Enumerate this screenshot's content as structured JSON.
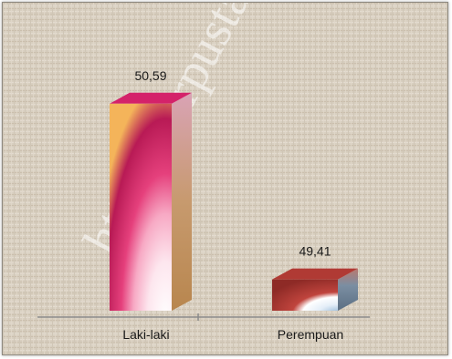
{
  "chart_data": {
    "type": "bar",
    "categories": [
      "Laki-laki",
      "Perempuan"
    ],
    "values": [
      50.59,
      49.41
    ],
    "value_labels": [
      "50,59",
      "49,41"
    ],
    "title": "",
    "xlabel": "",
    "ylabel": "",
    "ylim": [
      49.2,
      50.65
    ],
    "grid": false,
    "legend": "none",
    "bar_style": "3d-gradient",
    "colors": {
      "Laki-laki": {
        "light": "#fde6ee",
        "mid": "#f07aa3",
        "dark": "#b81a55",
        "top": "#d4226a",
        "side": "#c79a6e",
        "orange": "#f4b45a"
      },
      "Perempuan": {
        "light": "#e4eef8",
        "mid": "#b9d0e6",
        "dark": "#8e2a26",
        "top": "#b03a34",
        "side": "#5b6f83",
        "ring": "#c0443d"
      }
    },
    "background": "#d9d0c1"
  },
  "watermark": "http://perpustakaan"
}
